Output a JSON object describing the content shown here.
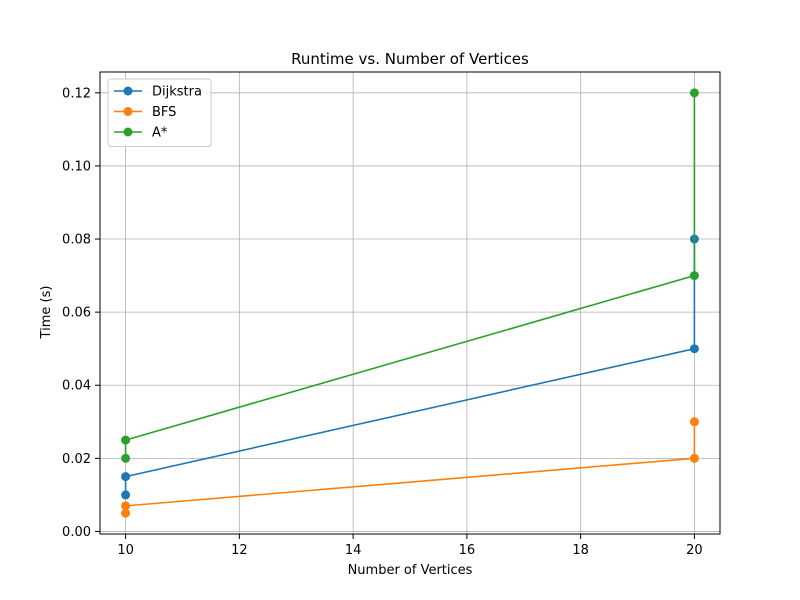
{
  "chart_data": {
    "type": "line",
    "title": "Runtime vs. Number of Vertices",
    "xlabel": "Number of Vertices",
    "ylabel": "Time (s)",
    "xlim": [
      9.55,
      20.45
    ],
    "ylim": [
      -0.0007,
      0.1257
    ],
    "x_ticks": [
      10,
      12,
      14,
      16,
      18,
      20
    ],
    "y_ticks": [
      0.0,
      0.02,
      0.04,
      0.06,
      0.08,
      0.1,
      0.12
    ],
    "x_tick_labels": [
      "10",
      "12",
      "14",
      "16",
      "18",
      "20"
    ],
    "y_tick_labels": [
      "0.00",
      "0.02",
      "0.04",
      "0.06",
      "0.08",
      "0.10",
      "0.12"
    ],
    "grid": true,
    "legend_position": "upper-left",
    "series": [
      {
        "name": "Dijkstra",
        "color": "#1f77b4",
        "x": [
          10,
          10,
          20,
          20
        ],
        "y": [
          0.01,
          0.015,
          0.05,
          0.08
        ]
      },
      {
        "name": "BFS",
        "color": "#ff7f0e",
        "x": [
          10,
          10,
          20,
          20
        ],
        "y": [
          0.005,
          0.007,
          0.02,
          0.03
        ]
      },
      {
        "name": "A*",
        "color": "#2ca02c",
        "x": [
          10,
          10,
          20,
          20
        ],
        "y": [
          0.02,
          0.025,
          0.07,
          0.12
        ]
      }
    ]
  }
}
